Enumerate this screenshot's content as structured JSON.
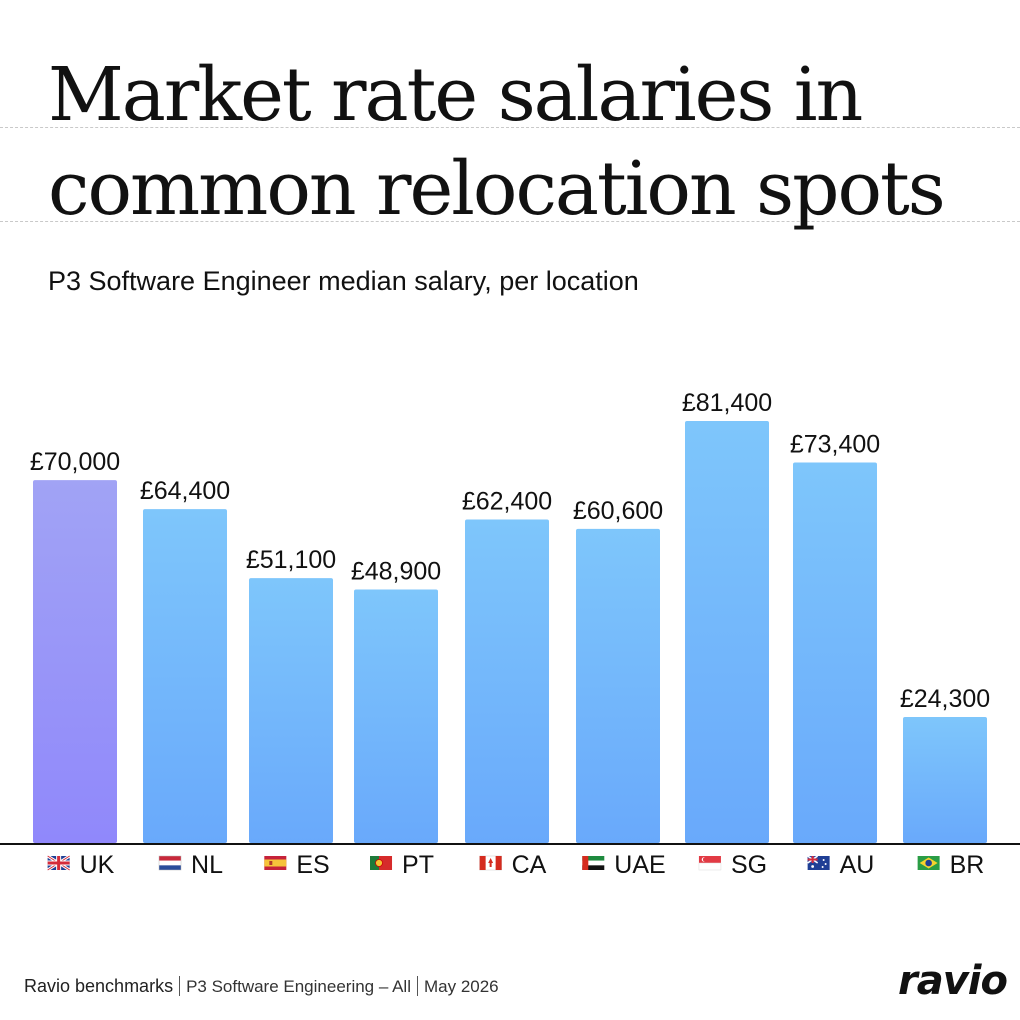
{
  "title_line1": "Market rate salaries in",
  "title_line2": "common relocation spots",
  "subtitle": "P3 Software Engineer median salary, per location",
  "footer": {
    "source": "Ravio benchmarks",
    "dataset": "P3 Software Engineering – All",
    "date": "May 2026"
  },
  "logo": "ravio",
  "colors": {
    "highlight_top": "#a1a3f5",
    "highlight_bottom": "#9088fb",
    "bar_top": "#7ec6fb",
    "bar_bottom": "#69a9fb",
    "axis": "#111111"
  },
  "chart_data": {
    "type": "bar",
    "title": "Market rate salaries in common relocation spots",
    "subtitle": "P3 Software Engineer median salary, per location",
    "categories": [
      "UK",
      "NL",
      "ES",
      "PT",
      "CA",
      "UAE",
      "SG",
      "AU",
      "BR"
    ],
    "flags": [
      "uk-flag-icon",
      "nl-flag-icon",
      "es-flag-icon",
      "pt-flag-icon",
      "ca-flag-icon",
      "uae-flag-icon",
      "sg-flag-icon",
      "au-flag-icon",
      "br-flag-icon"
    ],
    "values": [
      70000,
      64400,
      51100,
      48900,
      62400,
      60600,
      81400,
      73400,
      24300
    ],
    "data_labels": [
      "£70,000",
      "£64,400",
      "£51,100",
      "£48,900",
      "£62,400",
      "£60,600",
      "£81,400",
      "£73,400",
      "£24,300"
    ],
    "highlighted_category": "UK",
    "ylim": [
      0,
      81400
    ],
    "grid": false,
    "xlabel": "",
    "ylabel": ""
  }
}
